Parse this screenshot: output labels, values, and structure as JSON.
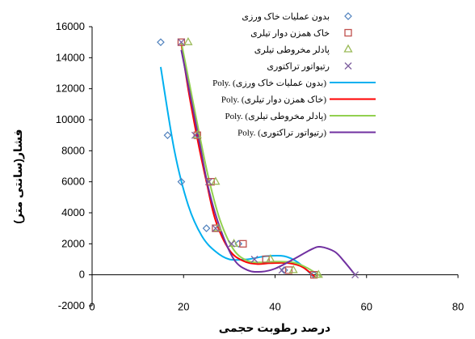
{
  "chart_data": {
    "type": "scatter",
    "xlabel": "درصد رطوبت حجمی",
    "ylabel": "فشار(سانتی متر)",
    "xlim": [
      0,
      80
    ],
    "ylim": [
      -2000,
      16000
    ],
    "x_ticks": [
      0,
      20,
      40,
      60,
      80
    ],
    "y_ticks": [
      -2000,
      0,
      2000,
      4000,
      6000,
      8000,
      10000,
      12000,
      14000,
      16000
    ],
    "grid": false,
    "legend_position": "top-right",
    "series": [
      {
        "name": "بدون عملیات خاک ورزی",
        "marker": "diamond",
        "color": "#4f81bd",
        "x": [
          15,
          16.5,
          19.5,
          25,
          32,
          42,
          48.5
        ],
        "y": [
          15000,
          9000,
          6000,
          3000,
          2000,
          300,
          0
        ]
      },
      {
        "name": "خاک همزن دوار تیلری",
        "marker": "square",
        "color": "#c0504d",
        "x": [
          19.5,
          23,
          26,
          27,
          33,
          38,
          43,
          48.5
        ],
        "y": [
          15000,
          9000,
          6000,
          3000,
          2000,
          1000,
          300,
          0
        ]
      },
      {
        "name": "پادلر مخروطی تیلری",
        "marker": "triangle",
        "color": "#9bbb59",
        "x": [
          21,
          23,
          27,
          27.5,
          31,
          39,
          44,
          49.5
        ],
        "y": [
          15000,
          9000,
          6000,
          3000,
          2000,
          1000,
          300,
          0
        ]
      },
      {
        "name": "رتیواتور تراکتوری",
        "marker": "x",
        "color": "#7f60a0",
        "x": [
          19.5,
          22.5,
          25.5,
          27,
          30.5,
          35.5,
          41.5,
          57.5
        ],
        "y": [
          15000,
          9000,
          6000,
          3000,
          2000,
          1000,
          300,
          0
        ]
      }
    ],
    "trendlines": [
      {
        "name": "Poly. (بدون عملیات خاک ورزی)",
        "color": "#00b0f0",
        "points": [
          [
            15,
            13400
          ],
          [
            18,
            8000
          ],
          [
            21,
            4500
          ],
          [
            24,
            2500
          ],
          [
            27,
            1500
          ],
          [
            30,
            1000
          ],
          [
            34,
            1000
          ],
          [
            38,
            1200
          ],
          [
            42,
            1200
          ],
          [
            45,
            800
          ],
          [
            48,
            0
          ]
        ]
      },
      {
        "name": "Poly. (خاک همزن دوار تیلری)",
        "color": "#ff0000",
        "points": [
          [
            19.5,
            14900
          ],
          [
            21,
            12000
          ],
          [
            23,
            8800
          ],
          [
            25,
            6000
          ],
          [
            27,
            3500
          ],
          [
            30,
            1600
          ],
          [
            33,
            900
          ],
          [
            36,
            700
          ],
          [
            39,
            750
          ],
          [
            43,
            750
          ],
          [
            46,
            500
          ],
          [
            49,
            -200
          ]
        ]
      },
      {
        "name": "Poly. (پادلر مخروطی تیلری)",
        "color": "#92d050",
        "points": [
          [
            19.5,
            15000
          ],
          [
            21.5,
            12000
          ],
          [
            23.5,
            9000
          ],
          [
            25.5,
            6200
          ],
          [
            28,
            3500
          ],
          [
            31,
            1600
          ],
          [
            34,
            900
          ],
          [
            37,
            800
          ],
          [
            40,
            850
          ],
          [
            44,
            800
          ],
          [
            47,
            450
          ],
          [
            50,
            -100
          ]
        ]
      },
      {
        "name": "Poly. (رتیواتور تراکتوری)",
        "color": "#7030a0",
        "points": [
          [
            19.5,
            14500
          ],
          [
            21.5,
            11500
          ],
          [
            23.5,
            8500
          ],
          [
            25.5,
            5500
          ],
          [
            28,
            3000
          ],
          [
            31,
            1000
          ],
          [
            34,
            300
          ],
          [
            37,
            200
          ],
          [
            40,
            400
          ],
          [
            44,
            1000
          ],
          [
            48,
            1650
          ],
          [
            50,
            1800
          ],
          [
            53,
            1500
          ],
          [
            55,
            900
          ],
          [
            57.5,
            0
          ]
        ]
      }
    ]
  }
}
